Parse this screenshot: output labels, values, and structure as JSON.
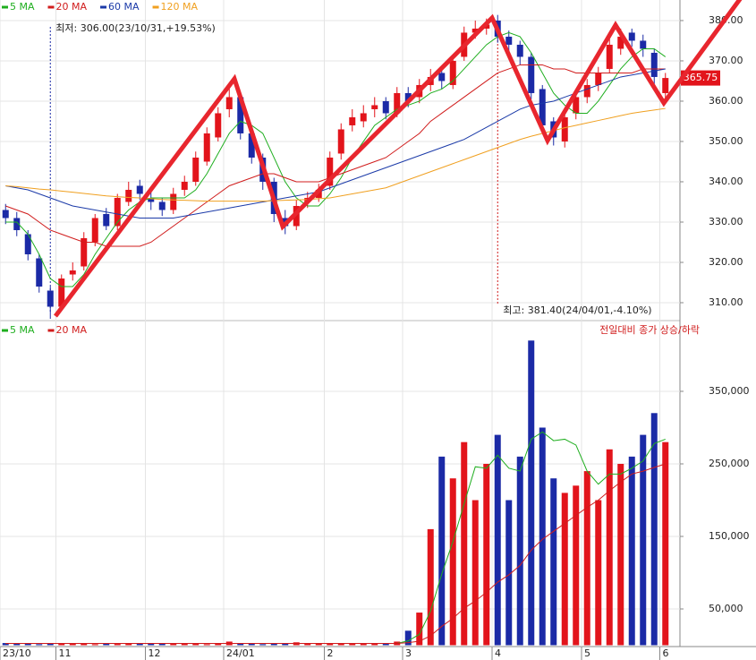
{
  "chart_data": [
    {
      "type": "candlestick",
      "categories": [
        "23/10",
        null,
        null,
        null,
        null,
        "11",
        null,
        null,
        null,
        null,
        null,
        null,
        null,
        "12",
        null,
        null,
        null,
        null,
        null,
        null,
        "24/01",
        null,
        null,
        null,
        null,
        null,
        null,
        null,
        null,
        "2",
        null,
        null,
        null,
        null,
        null,
        null,
        "3",
        null,
        null,
        null,
        null,
        null,
        null,
        null,
        "4",
        null,
        null,
        null,
        null,
        null,
        null,
        null,
        "5",
        null,
        null,
        null,
        null,
        null,
        null,
        "6"
      ],
      "open": [
        333,
        331,
        327,
        321,
        313,
        309,
        317,
        319,
        325,
        332,
        329,
        335,
        339,
        336,
        335,
        333,
        338,
        340,
        345,
        351,
        358,
        361,
        352,
        346,
        340,
        331,
        329,
        335,
        336,
        339,
        347,
        354,
        355,
        358,
        360,
        357,
        362,
        361,
        364,
        367,
        364,
        371,
        377,
        378,
        380,
        376,
        374,
        371,
        363,
        355,
        350,
        357,
        361,
        364,
        368,
        373,
        377,
        375,
        372,
        362
      ],
      "high": [
        334.5,
        332.5,
        328,
        322,
        314,
        317,
        320,
        327.5,
        332,
        333.5,
        337,
        340,
        340.5,
        337.5,
        336,
        338.5,
        341.5,
        347.5,
        353.5,
        358.5,
        364,
        362,
        353.5,
        347,
        341,
        333,
        335.5,
        337.5,
        339.5,
        347.5,
        354.5,
        358,
        359,
        361,
        361,
        363.5,
        363.5,
        365.5,
        368,
        368.5,
        371.5,
        378.5,
        380,
        380.5,
        381.4,
        377.5,
        375,
        372,
        364,
        356,
        357.5,
        362.5,
        365.5,
        368.5,
        375.5,
        378,
        378,
        376.5,
        373,
        367
      ],
      "low": [
        329.5,
        326.5,
        320.5,
        312.5,
        306,
        308,
        315.5,
        318,
        324,
        328,
        328,
        334,
        335.5,
        333,
        331.5,
        332,
        336.5,
        339,
        344,
        350,
        356,
        350.5,
        344.5,
        338,
        330,
        327,
        328,
        333.5,
        335,
        338,
        345.5,
        352.5,
        353.5,
        356,
        355.5,
        356,
        358.5,
        359.5,
        362.5,
        363,
        363,
        370,
        375.5,
        376.5,
        374.5,
        372,
        369,
        360.5,
        352,
        349,
        348.5,
        355.5,
        359.5,
        362.5,
        367,
        371.5,
        373.5,
        371,
        364,
        360.5
      ],
      "close": [
        331,
        328,
        322,
        314,
        309,
        316,
        318,
        326,
        331,
        329,
        336,
        338,
        337,
        335,
        333,
        337,
        340,
        346,
        352,
        357,
        361,
        352,
        346,
        340,
        332,
        329,
        334,
        336,
        338,
        346,
        353,
        356,
        357,
        359,
        357,
        362,
        360,
        364,
        366,
        365,
        370,
        377,
        378,
        379,
        376,
        374,
        371,
        362,
        354,
        351,
        356,
        361,
        364,
        367,
        374,
        376,
        375,
        373,
        366,
        365.75
      ],
      "up_color": "#e2141b",
      "down_color": "#1b2aa6",
      "series": [
        {
          "name": "5 MA",
          "color": "#1fae1f",
          "values": [
            330,
            330,
            327,
            322,
            316,
            314,
            314,
            317,
            322,
            326,
            330,
            333,
            335,
            336,
            336,
            336,
            336,
            338,
            342,
            347,
            352,
            355,
            354,
            352,
            346,
            340,
            336,
            334,
            334,
            337,
            341,
            346,
            350,
            354,
            356,
            358,
            359,
            360,
            362,
            363,
            365,
            368,
            371,
            374,
            376,
            377,
            376,
            372,
            367,
            362,
            359,
            357,
            357,
            360,
            364,
            368,
            371,
            373,
            373,
            371
          ]
        },
        {
          "name": "20 MA",
          "color": "#d01c1c",
          "values": [
            334,
            333,
            332,
            330,
            328,
            327,
            326,
            325,
            325,
            324,
            324,
            324,
            324,
            325,
            327,
            329,
            331,
            333,
            335,
            337,
            339,
            340,
            341,
            342,
            342,
            341,
            340,
            340,
            340,
            341,
            342,
            343,
            344,
            345,
            346,
            348,
            350,
            352,
            355,
            357,
            359,
            361,
            363,
            365,
            367,
            368,
            369,
            369,
            369,
            368,
            368,
            367,
            367,
            367,
            367,
            367,
            367,
            368,
            368,
            368
          ]
        },
        {
          "name": "60 MA",
          "color": "#1b3aa8",
          "values": [
            339,
            338.5,
            338,
            337,
            336,
            335,
            334,
            333.5,
            333,
            332.5,
            332,
            331.5,
            331,
            331,
            331,
            331,
            331.5,
            332,
            332.5,
            333,
            333.5,
            334,
            334.5,
            335,
            335.5,
            336,
            336.5,
            337,
            337.5,
            338.5,
            339.5,
            340.5,
            341.5,
            342.5,
            343.5,
            344.5,
            345.5,
            346.5,
            347.5,
            348.5,
            349.5,
            350.5,
            352,
            353.5,
            355,
            356.5,
            358,
            359,
            359.5,
            360,
            361,
            362,
            363,
            364,
            365,
            366,
            366.5,
            367,
            367.5,
            368
          ]
        },
        {
          "name": "120 MA",
          "color": "#f0a020",
          "values": [
            339,
            338.8,
            338.5,
            338.2,
            338,
            337.7,
            337.4,
            337.1,
            336.8,
            336.5,
            336.3,
            336.1,
            336,
            335.8,
            335.6,
            335.5,
            335.4,
            335.3,
            335.2,
            335.2,
            335.2,
            335.2,
            335.2,
            335.2,
            335.3,
            335.4,
            335.5,
            335.6,
            335.8,
            336,
            336.5,
            337,
            337.5,
            338,
            338.5,
            339.5,
            340.5,
            341.5,
            342.5,
            343.5,
            344.5,
            345.5,
            346.5,
            347.5,
            348.5,
            349.5,
            350.5,
            351.3,
            352,
            352.7,
            353.4,
            354,
            354.6,
            355.2,
            355.8,
            356.4,
            357,
            357.4,
            357.8,
            358.2
          ]
        }
      ],
      "annotations": [
        "최저: 306.00(23/10/31,+19.53%)",
        "최고: 381.40(24/04/01,-4.10%)"
      ],
      "ylim": [
        305.6,
        385.1
      ],
      "yticks": [
        {
          "value": 310,
          "label": "310.00"
        },
        {
          "value": 320,
          "label": "320.00"
        },
        {
          "value": 330,
          "label": "330.00"
        },
        {
          "value": 340,
          "label": "340.00"
        },
        {
          "value": 350,
          "label": "350.00"
        },
        {
          "value": 360,
          "label": "360.00"
        },
        {
          "value": 370,
          "label": "370.00"
        },
        {
          "value": 380,
          "label": "380.00"
        }
      ],
      "grid": true
    },
    {
      "type": "bar",
      "values": [
        3000,
        2000,
        2500,
        1500,
        2000,
        3000,
        2500,
        2000,
        1500,
        2000,
        1800,
        2000,
        2200,
        2500,
        2000,
        3000,
        2000,
        2500,
        1500,
        3000,
        5000,
        2500,
        2000,
        1500,
        2000,
        3000,
        4000,
        2500,
        2000,
        2000,
        2500,
        3000,
        2000,
        2500,
        3000,
        5000,
        20000,
        45000,
        160000,
        260000,
        230000,
        280000,
        200000,
        250000,
        290000,
        200000,
        260000,
        420000,
        300000,
        230000,
        210000,
        220000,
        240000,
        200000,
        270000,
        250000,
        260000,
        290000,
        320000,
        280000
      ],
      "series": [
        {
          "name": "5 MA",
          "color": "#1fae1f",
          "values": [
            2500,
            2500,
            2500,
            2500,
            2500,
            2500,
            2500,
            2500,
            2500,
            2500,
            2500,
            2500,
            2500,
            2500,
            2500,
            2500,
            2500,
            2500,
            2500,
            2500,
            2500,
            2500,
            2500,
            2500,
            2500,
            2500,
            2500,
            2500,
            2500,
            2500,
            2500,
            2500,
            2500,
            2500,
            2500,
            2500,
            6000,
            15000,
            47000,
            98000,
            143000,
            195000,
            246000,
            244000,
            262000,
            244000,
            240000,
            284000,
            294000,
            282000,
            284000,
            276000,
            240000,
            222000,
            236000,
            236000,
            244000,
            254000,
            278000,
            284000
          ]
        },
        {
          "name": "20 MA",
          "color": "#d01c1c",
          "values": [
            2500,
            2500,
            2500,
            2500,
            2500,
            2500,
            2500,
            2500,
            2500,
            2500,
            2500,
            2500,
            2500,
            2500,
            2500,
            2500,
            2500,
            2500,
            2500,
            2500,
            2500,
            2500,
            2500,
            2500,
            2500,
            2500,
            2500,
            2500,
            2500,
            2500,
            2500,
            2500,
            2500,
            2500,
            2500,
            2500,
            3500,
            5500,
            13000,
            26000,
            37000,
            51000,
            61000,
            73000,
            87000,
            97000,
            110000,
            131000,
            146000,
            157000,
            168000,
            179000,
            190000,
            200000,
            213000,
            225000,
            236000,
            240000,
            245000,
            250000
          ]
        }
      ],
      "annotation": "전일대비 종가 상승/하락",
      "ylim": [
        0,
        447500
      ],
      "yticks": [
        {
          "value": 50000,
          "label": "50,000"
        },
        {
          "value": 150000,
          "label": "150,000"
        },
        {
          "value": 250000,
          "label": "250,000"
        },
        {
          "value": 350000,
          "label": "350,000"
        }
      ],
      "grid": true
    }
  ]
}
